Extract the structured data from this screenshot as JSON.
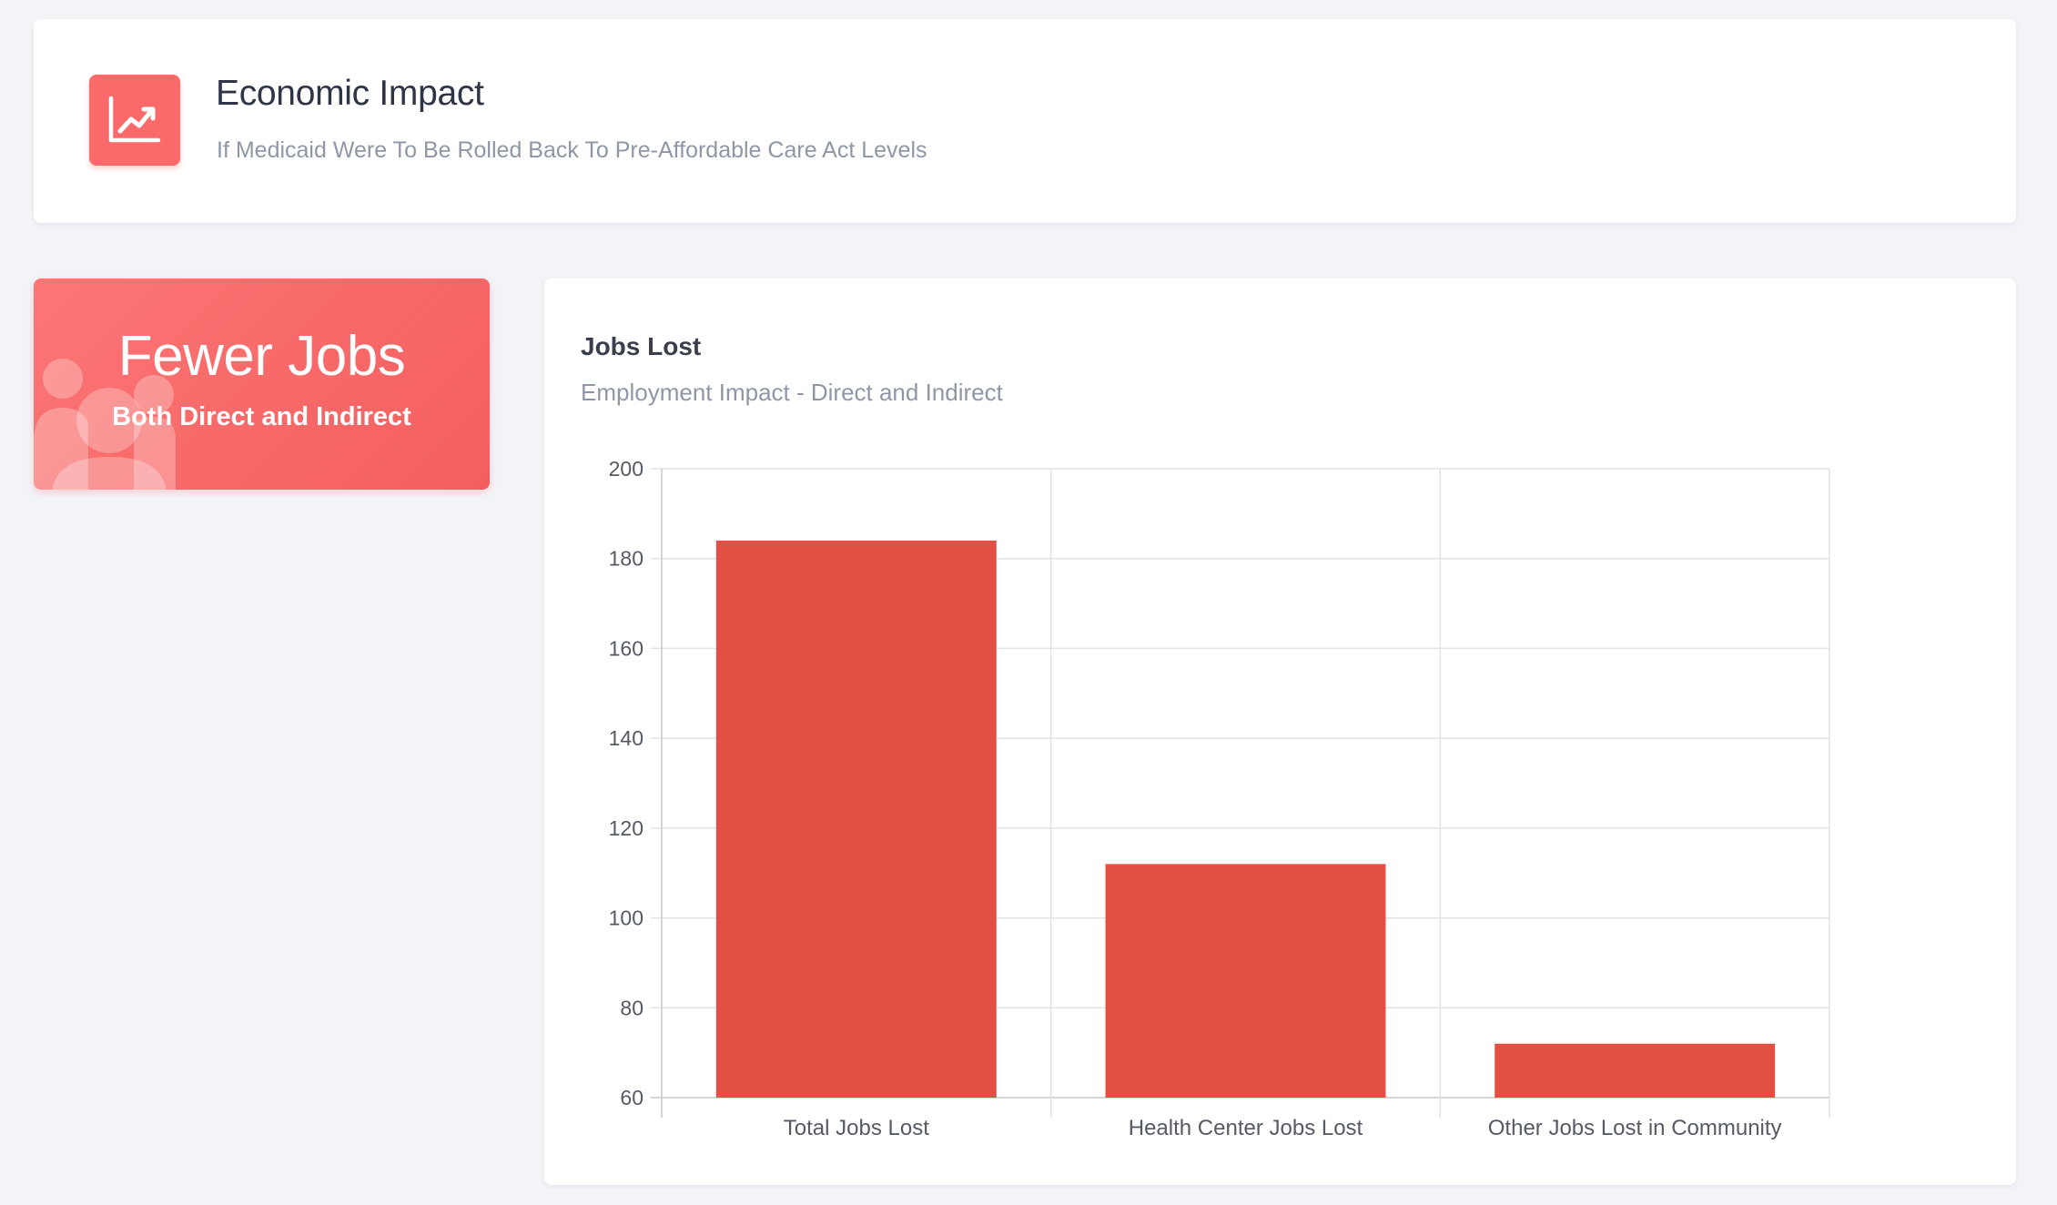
{
  "header": {
    "title": "Economic Impact",
    "subtitle": "If Medicaid Were To Be Rolled Back To Pre-Affordable Care Act Levels",
    "icon": "chart-line-icon"
  },
  "summary_card": {
    "title": "Fewer Jobs",
    "subtitle": "Both Direct and Indirect",
    "icon": "users-icon"
  },
  "chart_panel": {
    "title": "Jobs Lost",
    "subtitle": "Employment Impact - Direct and Indirect"
  },
  "colors": {
    "accent": "#fa6a6a",
    "bar": "#e44f44",
    "background": "#f3f4f8"
  },
  "chart_data": {
    "type": "bar",
    "categories": [
      "Total Jobs Lost",
      "Health Center Jobs Lost",
      "Other Jobs Lost in Community"
    ],
    "values": [
      184,
      112,
      72
    ],
    "title": "Jobs Lost",
    "subtitle": "Employment Impact - Direct and Indirect",
    "xlabel": "",
    "ylabel": "",
    "ylim": [
      60,
      200
    ],
    "yticks": [
      60,
      80,
      100,
      120,
      140,
      160,
      180,
      200
    ],
    "grid": true,
    "legend": "none"
  }
}
